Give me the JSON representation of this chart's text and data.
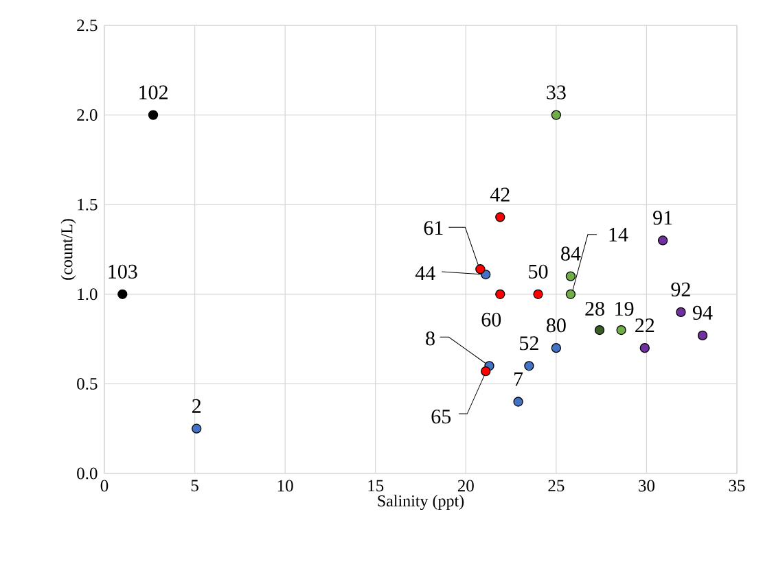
{
  "chart_data": {
    "type": "scatter",
    "xlabel": "Salinity (ppt)",
    "ylabel": "(count/L)",
    "xlim": [
      0,
      35
    ],
    "ylim": [
      0,
      2.5
    ],
    "xticks": [
      0,
      5,
      10,
      15,
      20,
      25,
      30,
      35
    ],
    "yticks": [
      {
        "value": 0,
        "label": "0.0"
      },
      {
        "value": 0.5,
        "label": "0.5"
      },
      {
        "value": 1,
        "label": "1.0"
      },
      {
        "value": 1.5,
        "label": "1.5"
      },
      {
        "value": 2,
        "label": "2.0"
      },
      {
        "value": 2.5,
        "label": "2.5"
      }
    ],
    "grid": true,
    "marker": "circle",
    "series": [
      {
        "color": "#000000",
        "x": [
          2.7,
          1.0
        ],
        "values": [
          2.0,
          1.0
        ]
      },
      {
        "color": "#4472c4",
        "x": [
          5.1,
          21.1,
          25.0,
          23.5,
          22.9,
          21.3
        ],
        "values": [
          0.25,
          1.11,
          0.7,
          0.6,
          0.4,
          0.6
        ]
      },
      {
        "color": "#ff0000",
        "x": [
          21.9,
          20.8,
          21.9,
          24.0,
          21.1
        ],
        "values": [
          1.43,
          1.14,
          1.0,
          1.0,
          0.57
        ]
      },
      {
        "color": "#70ad47",
        "x": [
          25.0,
          25.8,
          25.8,
          28.6
        ],
        "values": [
          2.0,
          1.1,
          1.0,
          0.8
        ]
      },
      {
        "color": "#3a5f26",
        "x": [
          27.4
        ],
        "values": [
          0.8
        ]
      },
      {
        "color": "#7030a0",
        "x": [
          30.9,
          31.9,
          33.1,
          29.9
        ],
        "values": [
          1.3,
          0.9,
          0.77,
          0.7
        ]
      }
    ],
    "annotations": [
      {
        "text": "102",
        "x": 2.7,
        "y": 2.0
      },
      {
        "text": "103",
        "x": 1.0,
        "y": 1.0
      },
      {
        "text": "2",
        "x": 5.1,
        "y": 0.25
      },
      {
        "text": "33",
        "x": 25.0,
        "y": 2.0
      },
      {
        "text": "42",
        "x": 21.9,
        "y": 1.43
      },
      {
        "text": "61",
        "x": 20.8,
        "y": 1.14
      },
      {
        "text": "44",
        "x": 21.1,
        "y": 1.11
      },
      {
        "text": "60",
        "x": 21.9,
        "y": 1.0
      },
      {
        "text": "50",
        "x": 24.0,
        "y": 1.0
      },
      {
        "text": "84",
        "x": 25.8,
        "y": 1.1
      },
      {
        "text": "14",
        "x": 25.8,
        "y": 1.0
      },
      {
        "text": "91",
        "x": 30.9,
        "y": 1.3
      },
      {
        "text": "92",
        "x": 31.9,
        "y": 0.9
      },
      {
        "text": "94",
        "x": 33.1,
        "y": 0.77
      },
      {
        "text": "22",
        "x": 29.9,
        "y": 0.7
      },
      {
        "text": "28",
        "x": 27.4,
        "y": 0.8
      },
      {
        "text": "19",
        "x": 28.6,
        "y": 0.8
      },
      {
        "text": "80",
        "x": 25.0,
        "y": 0.7
      },
      {
        "text": "52",
        "x": 23.5,
        "y": 0.6
      },
      {
        "text": "7",
        "x": 22.9,
        "y": 0.4
      },
      {
        "text": "8",
        "x": 21.3,
        "y": 0.6
      },
      {
        "text": "65",
        "x": 21.1,
        "y": 0.57
      }
    ]
  }
}
